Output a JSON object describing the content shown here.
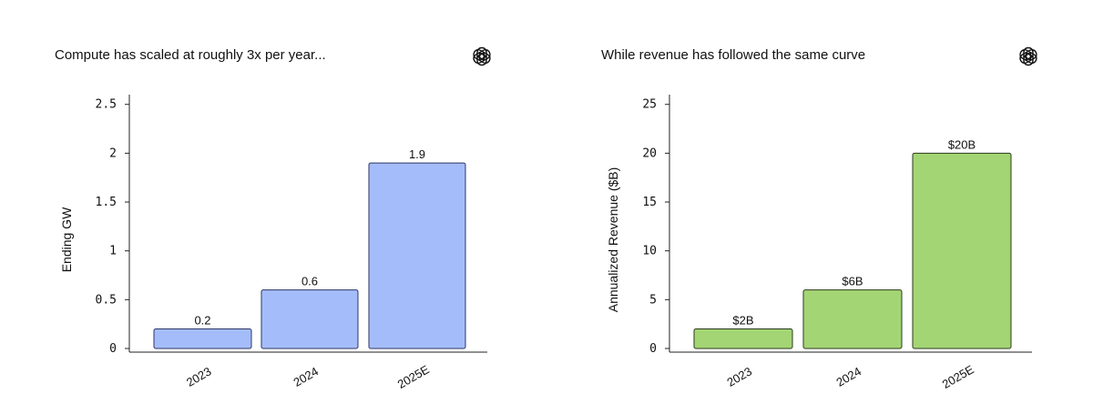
{
  "chart_data": [
    {
      "type": "bar",
      "title": "Compute has scaled at roughly 3x per year...",
      "ylabel": "Ending GW",
      "xlabel": "",
      "categories": [
        "2023",
        "2024",
        "2025E"
      ],
      "values": [
        0.2,
        0.6,
        1.9
      ],
      "data_labels": [
        "0.2",
        "0.6",
        "1.9"
      ],
      "ylim": [
        0,
        2.6
      ],
      "yticks": [
        0,
        0.5,
        1,
        1.5,
        2,
        2.5
      ],
      "ytick_labels": [
        "0",
        "0.5",
        "1",
        "1.5",
        "2",
        "2.5"
      ],
      "bar_color": "#a4bdfa",
      "edge_color": "#2b3566",
      "grid": false,
      "logo_icon": "openai-logo-icon"
    },
    {
      "type": "bar",
      "title": "While revenue has followed the same curve",
      "ylabel": "Annualized Revenue ($B)",
      "xlabel": "",
      "categories": [
        "2023",
        "2024",
        "2025E"
      ],
      "values": [
        2,
        6,
        20
      ],
      "data_labels": [
        "$2B",
        "$6B",
        "$20B"
      ],
      "ylim": [
        0,
        26
      ],
      "yticks": [
        0,
        5,
        10,
        15,
        20,
        25
      ],
      "ytick_labels": [
        "0",
        "5",
        "10",
        "15",
        "20",
        "25"
      ],
      "bar_color": "#a3d574",
      "edge_color": "#2b3a1c",
      "grid": false,
      "logo_icon": "openai-logo-icon"
    }
  ]
}
